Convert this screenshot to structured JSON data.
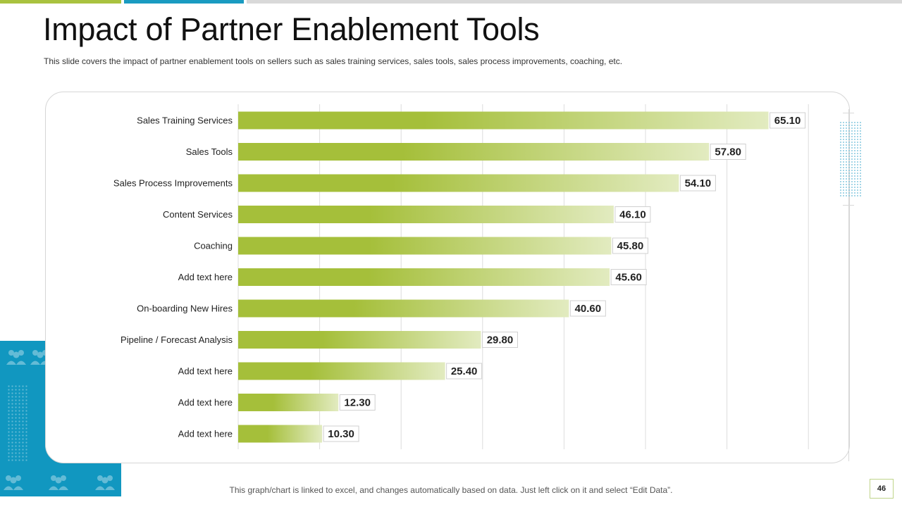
{
  "slide": {
    "title": "Impact of Partner Enablement Tools",
    "subtitle": "This slide covers the impact of partner enablement tools on sellers such as sales training services, sales tools, sales process improvements,  coaching, etc.",
    "footer_note": "This graph/chart is linked to excel, and changes automatically based on data. Just left click on it and select “Edit Data”.",
    "page_number": "46"
  },
  "colors": {
    "accent_green": "#a9c23f",
    "accent_blue": "#1197c0",
    "bar_start": "#a5bf3a",
    "bar_end": "#e2ebc0"
  },
  "chart_data": {
    "type": "bar",
    "orientation": "horizontal",
    "title": "",
    "xlabel": "",
    "ylabel": "",
    "xlim": [
      0,
      70
    ],
    "grid": true,
    "categories": [
      "Sales Training Services",
      "Sales Tools",
      "Sales Process Improvements",
      "Content Services",
      "Coaching",
      "Add text here",
      "On-boarding New Hires",
      "Pipeline / Forecast Analysis",
      "Add text here",
      "Add text here",
      "Add text here"
    ],
    "values": [
      65.1,
      57.8,
      54.1,
      46.1,
      45.8,
      45.6,
      40.6,
      29.8,
      25.4,
      12.3,
      10.3
    ],
    "value_labels": [
      "65.10",
      "57.80",
      "54.10",
      "46.10",
      "45.80",
      "45.60",
      "40.60",
      "29.80",
      "25.40",
      "12.30",
      "10.30"
    ]
  }
}
